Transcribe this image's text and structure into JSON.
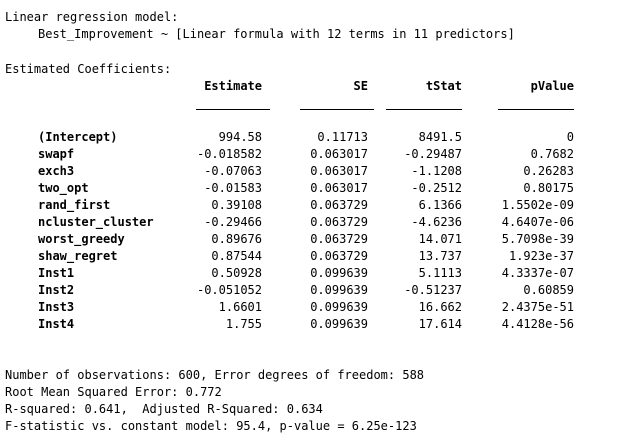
{
  "header": {
    "title": "Linear regression model:",
    "formula": "Best_Improvement ~ [Linear formula with 12 terms in 11 predictors]"
  },
  "coefficients": {
    "section_title": "Estimated Coefficients:",
    "columns": [
      "Estimate",
      "SE",
      "tStat",
      "pValue"
    ],
    "rows": [
      {
        "name": "(Intercept)",
        "estimate": "994.58",
        "se": "0.11713",
        "tstat": "8491.5",
        "pvalue": "0"
      },
      {
        "name": "swapf",
        "estimate": "-0.018582",
        "se": "0.063017",
        "tstat": "-0.29487",
        "pvalue": "0.7682"
      },
      {
        "name": "exch3",
        "estimate": "-0.07063",
        "se": "0.063017",
        "tstat": "-1.1208",
        "pvalue": "0.26283"
      },
      {
        "name": "two_opt",
        "estimate": "-0.01583",
        "se": "0.063017",
        "tstat": "-0.2512",
        "pvalue": "0.80175"
      },
      {
        "name": "rand_first",
        "estimate": "0.39108",
        "se": "0.063729",
        "tstat": "6.1366",
        "pvalue": "1.5502e-09"
      },
      {
        "name": "ncluster_cluster",
        "estimate": "-0.29466",
        "se": "0.063729",
        "tstat": "-4.6236",
        "pvalue": "4.6407e-06"
      },
      {
        "name": "worst_greedy",
        "estimate": "0.89676",
        "se": "0.063729",
        "tstat": "14.071",
        "pvalue": "5.7098e-39"
      },
      {
        "name": "shaw_regret",
        "estimate": "0.87544",
        "se": "0.063729",
        "tstat": "13.737",
        "pvalue": "1.923e-37"
      },
      {
        "name": "Inst1",
        "estimate": "0.50928",
        "se": "0.099639",
        "tstat": "5.1113",
        "pvalue": "4.3337e-07"
      },
      {
        "name": "Inst2",
        "estimate": "-0.051052",
        "se": "0.099639",
        "tstat": "-0.51237",
        "pvalue": "0.60859"
      },
      {
        "name": "Inst3",
        "estimate": "1.6601",
        "se": "0.099639",
        "tstat": "16.662",
        "pvalue": "2.4375e-51"
      },
      {
        "name": "Inst4",
        "estimate": "1.755",
        "se": "0.099639",
        "tstat": "17.614",
        "pvalue": "4.4128e-56"
      }
    ]
  },
  "summary": {
    "observations": "Number of observations: 600, Error degrees of freedom: 588",
    "rmse": "Root Mean Squared Error: 0.772",
    "rsquared": "R-squared: 0.641,  Adjusted R-Squared: 0.634",
    "fstat": "F-statistic vs. constant model: 95.4, p-value = 6.25e-123"
  }
}
